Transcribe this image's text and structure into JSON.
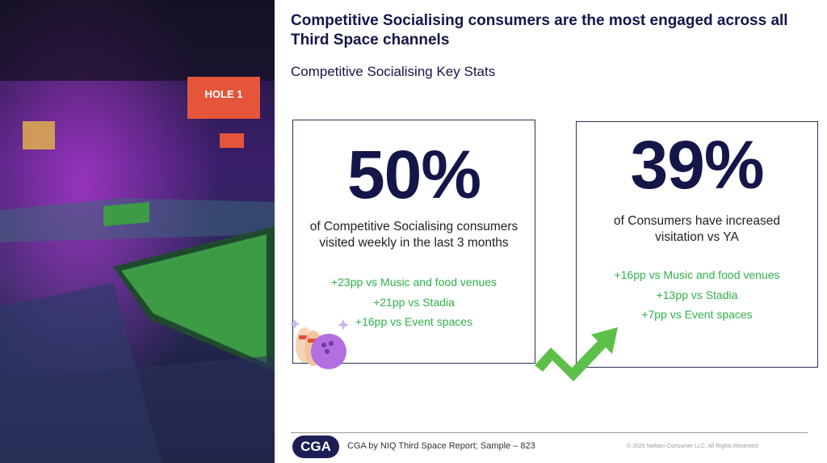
{
  "header": {
    "title": "Competitive Socialising consumers are the most engaged across all Third Space channels",
    "subtitle": "Competitive Socialising Key Stats"
  },
  "photo": {
    "sign": "HOLE 1"
  },
  "cards": [
    {
      "stat": "50%",
      "description": "of Competitive Socialising consumers visited weekly in the last 3 months",
      "comparisons": [
        "+23pp vs Music and food venues",
        "+21pp vs Stadia",
        "+16pp vs Event spaces"
      ]
    },
    {
      "stat": "39%",
      "description": "of Consumers have increased visitation vs YA",
      "comparisons": [
        "+16pp vs Music and food venues",
        "+13pp vs Stadia",
        "+7pp vs Event spaces"
      ]
    }
  ],
  "footer": {
    "logo": "CGA",
    "source": "CGA by NIQ Third Space Report; Sample – 823",
    "copyright": "© 2025 Nielsen Consumer LLC. All Rights Reserved."
  }
}
